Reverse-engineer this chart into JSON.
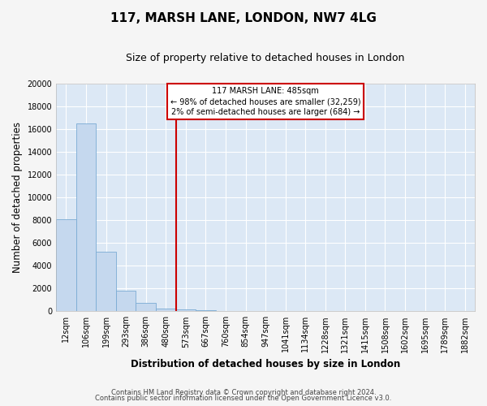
{
  "title": "117, MARSH LANE, LONDON, NW7 4LG",
  "subtitle": "Size of property relative to detached houses in London",
  "xlabel": "Distribution of detached houses by size in London",
  "ylabel": "Number of detached properties",
  "footnote1": "Contains HM Land Registry data © Crown copyright and database right 2024.",
  "footnote2": "Contains public sector information licensed under the Open Government Licence v3.0.",
  "categories": [
    "12sqm",
    "106sqm",
    "199sqm",
    "293sqm",
    "386sqm",
    "480sqm",
    "573sqm",
    "667sqm",
    "760sqm",
    "854sqm",
    "947sqm",
    "1041sqm",
    "1134sqm",
    "1228sqm",
    "1321sqm",
    "1415sqm",
    "1508sqm",
    "1602sqm",
    "1695sqm",
    "1789sqm",
    "1882sqm"
  ],
  "values": [
    8100,
    16500,
    5250,
    1800,
    700,
    250,
    150,
    100,
    50,
    0,
    0,
    0,
    0,
    0,
    0,
    0,
    0,
    0,
    0,
    0,
    0
  ],
  "bar_color": "#c5d8ee",
  "bar_edge_color": "#7aabd4",
  "vline_x_index": 5.5,
  "vline_color": "#cc0000",
  "annotation_text": "117 MARSH LANE: 485sqm\n← 98% of detached houses are smaller (32,259)\n2% of semi-detached houses are larger (684) →",
  "annotation_box_color": "#cc0000",
  "ylim": [
    0,
    20000
  ],
  "yticks": [
    0,
    2000,
    4000,
    6000,
    8000,
    10000,
    12000,
    14000,
    16000,
    18000,
    20000
  ],
  "bg_color": "#dce8f5",
  "grid_color": "#ffffff",
  "fig_bg_color": "#f5f5f5",
  "title_fontsize": 11,
  "subtitle_fontsize": 9,
  "axis_label_fontsize": 8.5,
  "tick_fontsize": 7,
  "annotation_fontsize": 7,
  "footnote_fontsize": 6
}
